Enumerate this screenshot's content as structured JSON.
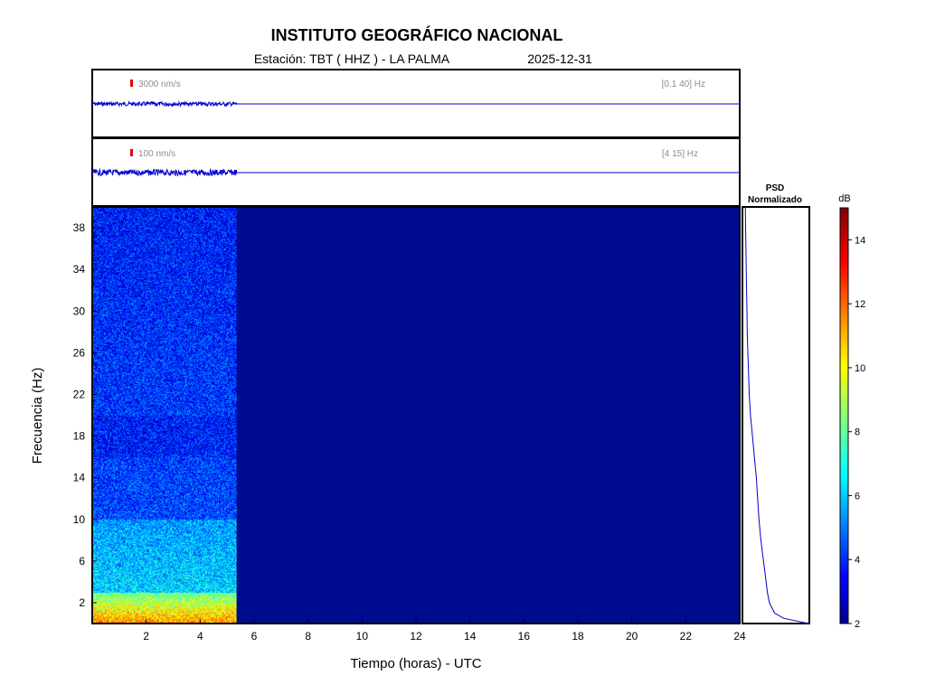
{
  "header": {
    "title": "INSTITUTO GEOGRÁFICO NACIONAL",
    "station_label": "Estación:  TBT ( HHZ ) - LA PALMA",
    "date": "2025-12-31"
  },
  "colors": {
    "trace": "#0000cc",
    "spectrogram_background": "#000c8f",
    "scale_bar": "#e00000"
  },
  "chart_data": [
    {
      "type": "line",
      "panel": "seismogram-broadband",
      "amplitude_label": "3000 nm/s",
      "band_label": "[0.1 40] Hz",
      "xlim": [
        0,
        24
      ],
      "data_end_hour": 5.35
    },
    {
      "type": "line",
      "panel": "seismogram-filtered",
      "amplitude_label": "100 nm/s",
      "band_label": "[4 15] Hz",
      "xlim": [
        0,
        24
      ],
      "data_end_hour": 5.35
    },
    {
      "type": "heatmap",
      "panel": "spectrogram",
      "xlabel": "Tiempo (horas) - UTC",
      "ylabel": "Frecuencia  (Hz)",
      "xlim": [
        0,
        24
      ],
      "ylim": [
        0,
        40
      ],
      "x_ticks": [
        "2",
        "4",
        "6",
        "8",
        "10",
        "12",
        "14",
        "16",
        "18",
        "20",
        "22",
        "24"
      ],
      "y_ticks": [
        "2",
        "6",
        "10",
        "14",
        "18",
        "22",
        "26",
        "30",
        "34",
        "38"
      ],
      "data_end_hour": 5.35,
      "colorbar": {
        "label": "dB",
        "range": [
          2,
          15
        ],
        "ticks": [
          "2",
          "4",
          "6",
          "8",
          "10",
          "12",
          "14"
        ]
      }
    },
    {
      "type": "line",
      "panel": "psd",
      "title": "PSD\nNormalizado",
      "title_lines": [
        "PSD",
        "Normalizado"
      ],
      "ylim": [
        0,
        40
      ],
      "frequency": [
        0,
        0.5,
        1,
        2,
        3,
        4,
        6,
        8,
        10,
        12,
        14,
        16,
        18,
        20,
        22,
        24,
        26,
        28,
        30,
        32,
        34,
        36,
        38,
        40
      ],
      "normalized_psd": [
        1.0,
        0.62,
        0.48,
        0.4,
        0.37,
        0.35,
        0.31,
        0.27,
        0.24,
        0.22,
        0.2,
        0.17,
        0.14,
        0.11,
        0.09,
        0.08,
        0.07,
        0.06,
        0.055,
        0.05,
        0.045,
        0.04,
        0.035,
        0.03
      ]
    }
  ]
}
